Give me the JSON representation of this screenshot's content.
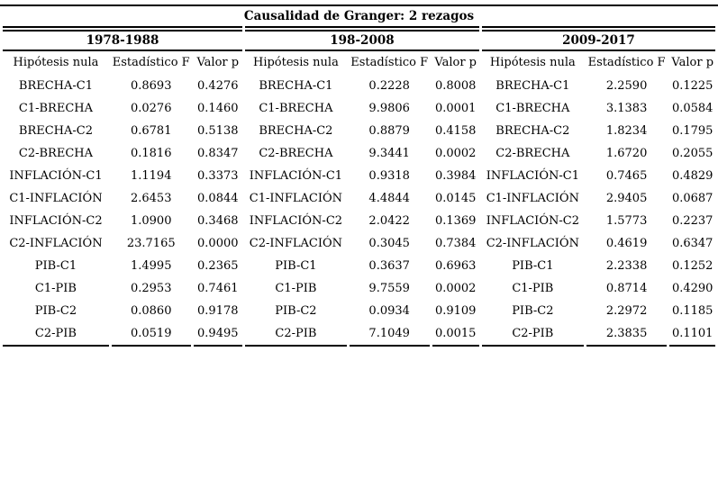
{
  "table": {
    "title": "Causalidad de Granger: 2 rezagos",
    "column_headers": [
      "Hipótesis nula",
      "Estadístico F",
      "Valor p"
    ],
    "sections": [
      {
        "period": "1978-1988",
        "rows": [
          [
            "BRECHA-C1",
            "0.8693",
            "0.4276"
          ],
          [
            "C1-BRECHA",
            "0.0276",
            "0.1460"
          ],
          [
            "BRECHA-C2",
            "0.6781",
            "0.5138"
          ],
          [
            "C2-BRECHA",
            "0.1816",
            "0.8347"
          ],
          [
            "INFLACIÓN-C1",
            "1.1194",
            "0.3373"
          ],
          [
            "C1-INFLACIÓN",
            "2.6453",
            "0.0844"
          ],
          [
            "INFLACIÓN-C2",
            "1.0900",
            "0.3468"
          ],
          [
            "C2-INFLACIÓN",
            "23.7165",
            "0.0000"
          ],
          [
            "PIB-C1",
            "1.4995",
            "0.2365"
          ],
          [
            "C1-PIB",
            "0.2953",
            "0.7461"
          ],
          [
            "PIB-C2",
            "0.0860",
            "0.9178"
          ],
          [
            "C2-PIB",
            "0.0519",
            "0.9495"
          ]
        ]
      },
      {
        "period": "198-2008",
        "rows": [
          [
            "BRECHA-C1",
            "0.2228",
            "0.8008"
          ],
          [
            "C1-BRECHA",
            "9.9806",
            "0.0001"
          ],
          [
            "BRECHA-C2",
            "0.8879",
            "0.4158"
          ],
          [
            "C2-BRECHA",
            "9.3441",
            "0.0002"
          ],
          [
            "INFLACIÓN-C1",
            "0.9318",
            "0.3984"
          ],
          [
            "C1-INFLACIÓN",
            "4.4844",
            "0.0145"
          ],
          [
            "INFLACIÓN-C2",
            "2.0422",
            "0.1369"
          ],
          [
            "C2-INFLACIÓN",
            "0.3045",
            "0.7384"
          ],
          [
            "PIB-C1",
            "0.3637",
            "0.6963"
          ],
          [
            "C1-PIB",
            "9.7559",
            "0.0002"
          ],
          [
            "PIB-C2",
            "0.0934",
            "0.9109"
          ],
          [
            "C2-PIB",
            "7.1049",
            "0.0015"
          ]
        ]
      },
      {
        "period": "2009-2017",
        "rows": [
          [
            "BRECHA-C1",
            "2.2590",
            "0.1225"
          ],
          [
            "C1-BRECHA",
            "3.1383",
            "0.0584"
          ],
          [
            "BRECHA-C2",
            "1.8234",
            "0.1795"
          ],
          [
            "C2-BRECHA",
            "1.6720",
            "0.2055"
          ],
          [
            "INFLACIÓN-C1",
            "0.7465",
            "0.4829"
          ],
          [
            "C1-INFLACIÓN",
            "2.9405",
            "0.0687"
          ],
          [
            "INFLACIÓN-C2",
            "1.5773",
            "0.2237"
          ],
          [
            "C2-INFLACIÓN",
            "0.4619",
            "0.6347"
          ],
          [
            "PIB-C1",
            "2.2338",
            "0.1252"
          ],
          [
            "C1-PIB",
            "0.8714",
            "0.4290"
          ],
          [
            "PIB-C2",
            "2.2972",
            "0.1185"
          ],
          [
            "C2-PIB",
            "2.3835",
            "0.1101"
          ]
        ]
      }
    ]
  },
  "colors": {
    "text": "#000000",
    "background": "#ffffff",
    "rule": "#000000"
  }
}
